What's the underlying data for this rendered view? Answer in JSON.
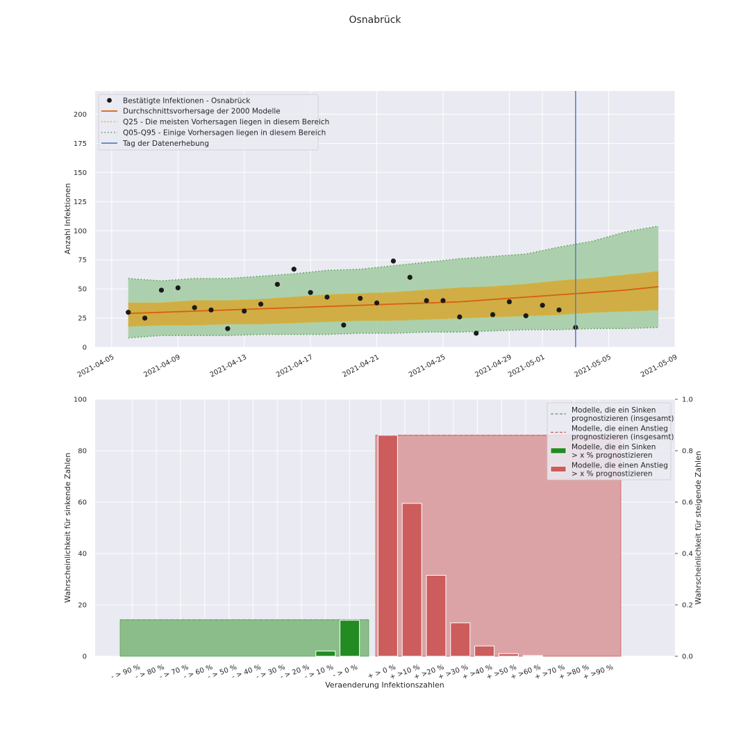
{
  "chart_data": [
    {
      "type": "line",
      "title": "Osnabrück",
      "ylabel": "Anzahl Infektionen",
      "xlabel": "",
      "ylim": [
        0,
        220
      ],
      "yticks": [
        0,
        25,
        50,
        75,
        100,
        125,
        150,
        175,
        200
      ],
      "xticks": [
        "2021-04-05",
        "2021-04-09",
        "2021-04-13",
        "2021-04-17",
        "2021-04-21",
        "2021-04-25",
        "2021-04-29",
        "2021-05-01",
        "2021-05-05",
        "2021-05-09"
      ],
      "xlim": [
        "2021-04-04",
        "2021-05-09"
      ],
      "grid": true,
      "legend_position": "top-left",
      "legend": [
        "Bestätigte Infektionen - Osnabrück",
        "Durchschnittsvorhersage der 2000 Modelle",
        "Q25 - Die meisten Vorhersagen liegen in diesem Bereich",
        "Q05-Q95 - Einige Vorhersagen liegen in diesem Bereich",
        "Tag der Datenerhebung"
      ],
      "colors": {
        "observed": "#1a1a1a",
        "mean": "#d95f0e",
        "q25": "#e6a800",
        "q25_fill": "#d4aa3a",
        "q05": "#5a9e5a",
        "q05_fill": "#a9cfa9",
        "vline": "#5b7fc2"
      },
      "observed": [
        [
          "2021-04-06",
          30
        ],
        [
          "2021-04-07",
          25
        ],
        [
          "2021-04-08",
          49
        ],
        [
          "2021-04-09",
          51
        ],
        [
          "2021-04-10",
          34
        ],
        [
          "2021-04-11",
          32
        ],
        [
          "2021-04-12",
          16
        ],
        [
          "2021-04-13",
          31
        ],
        [
          "2021-04-14",
          37
        ],
        [
          "2021-04-15",
          54
        ],
        [
          "2021-04-16",
          67
        ],
        [
          "2021-04-17",
          47
        ],
        [
          "2021-04-18",
          43
        ],
        [
          "2021-04-19",
          19
        ],
        [
          "2021-04-20",
          42
        ],
        [
          "2021-04-21",
          38
        ],
        [
          "2021-04-22",
          74
        ],
        [
          "2021-04-23",
          60
        ],
        [
          "2021-04-24",
          40
        ],
        [
          "2021-04-25",
          40
        ],
        [
          "2021-04-26",
          26
        ],
        [
          "2021-04-27",
          12
        ],
        [
          "2021-04-28",
          28
        ],
        [
          "2021-04-29",
          39
        ],
        [
          "2021-04-30",
          27
        ],
        [
          "2021-05-01",
          36
        ],
        [
          "2021-05-02",
          32
        ],
        [
          "2021-05-03",
          17
        ]
      ],
      "forecast_dates": [
        "2021-04-06",
        "2021-04-08",
        "2021-04-10",
        "2021-04-12",
        "2021-04-14",
        "2021-04-16",
        "2021-04-18",
        "2021-04-20",
        "2021-04-22",
        "2021-04-24",
        "2021-04-26",
        "2021-04-28",
        "2021-04-30",
        "2021-05-02",
        "2021-05-04",
        "2021-05-06",
        "2021-05-08"
      ],
      "mean": [
        29,
        30,
        31,
        32,
        33,
        34,
        35,
        36,
        37,
        38,
        39,
        41,
        43,
        45,
        47,
        49,
        52
      ],
      "q25_low": [
        18,
        19,
        19,
        20,
        20,
        21,
        22,
        23,
        23,
        24,
        25,
        26,
        27,
        28,
        30,
        31,
        32
      ],
      "q25_high": [
        38,
        38,
        40,
        40,
        41,
        43,
        45,
        46,
        47,
        49,
        51,
        52,
        54,
        57,
        59,
        62,
        65
      ],
      "q05_low": [
        8,
        10,
        10,
        10,
        11,
        11,
        11,
        12,
        12,
        13,
        13,
        14,
        15,
        15,
        16,
        16,
        17
      ],
      "q05_high": [
        59,
        57,
        59,
        59,
        61,
        63,
        66,
        67,
        70,
        73,
        76,
        78,
        80,
        86,
        91,
        99,
        104
      ],
      "vline_date": "2021-05-03"
    },
    {
      "type": "bar",
      "xlabel": "Veraenderung Infektionszahlen",
      "ylabel": "Wahrscheinlichkeit für sinkende Zahlen",
      "ylabel_right": "Wahrscheinlichkeit für steigende Zahlen",
      "ylim": [
        0,
        100
      ],
      "ylim_right": [
        0,
        1.0
      ],
      "yticks": [
        0,
        20,
        40,
        60,
        80,
        100
      ],
      "yticks_right": [
        "0.0",
        "0.2",
        "0.4",
        "0.6",
        "0.8",
        "1.0"
      ],
      "grid": true,
      "legend_position": "top-right",
      "categories": [
        "- > 90 %",
        "- > 80 %",
        "- > 70 %",
        "- > 60 %",
        "- > 50 %",
        "- > 40 %",
        "- > 30 %",
        "- > 20 %",
        "- > 10 %",
        "- > 0 %",
        "+ > 0 %",
        "+ >10 %",
        "+ >20 %",
        "+ >30 %",
        "+ >40 %",
        "+ >50 %",
        "+ >60 %",
        "+ >70 %",
        "+ >80 %",
        "+ >90 %"
      ],
      "series": [
        {
          "name": "Modelle, die ein Sinken\n > x % prognostizieren",
          "color": "#228b22",
          "values": [
            0,
            0,
            0,
            0,
            0,
            0,
            0,
            0,
            2,
            14,
            null,
            null,
            null,
            null,
            null,
            null,
            null,
            null,
            null,
            null
          ]
        },
        {
          "name": "Modelle, die einen Anstieg\n > x % prognostizieren",
          "color": "#cd5c5c",
          "values": [
            null,
            null,
            null,
            null,
            null,
            null,
            null,
            null,
            null,
            null,
            86,
            59.5,
            31.5,
            13,
            4,
            1,
            0.3,
            0,
            0,
            0
          ]
        }
      ],
      "totals": [
        {
          "name": "Modelle, die ein Sinken\n prognostizieren (insgesamt)",
          "value": 14.2,
          "color": "#5aa05a",
          "fill": "#8bbd8b"
        },
        {
          "name": "Modelle, die einen Anstieg\n prognostizieren (insgesamt)",
          "value": 86,
          "color": "#cd5c5c",
          "fill": "#dca3a6"
        }
      ]
    }
  ]
}
